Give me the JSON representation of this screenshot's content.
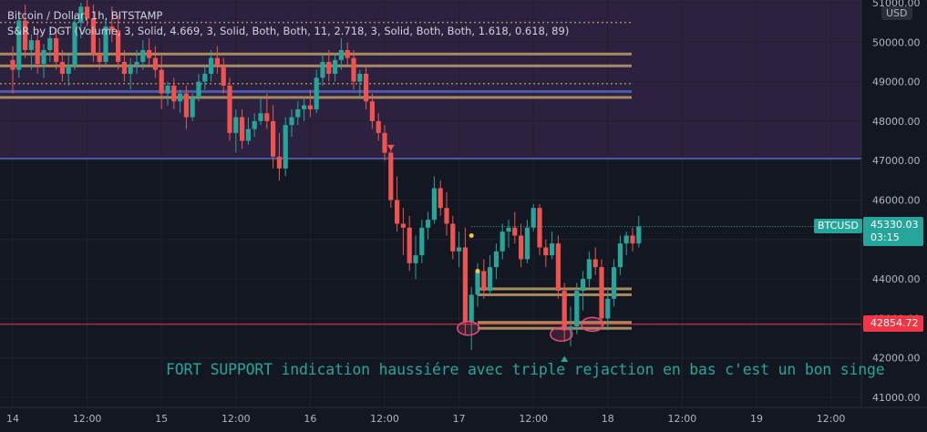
{
  "header": {
    "symbol_line": "Bitcoin / Dollar, 1h, BITSTAMP",
    "indicator_line": "S&R by DGT (Volume, 3, Solid, 4.669, 3, Solid, Both, Both, 11, 2.718, 3, Solid, Both, Both, 1.618, 0.618, 89)"
  },
  "annotation": "FORT SUPPORT indication haussiére avec triple rejaction en bas c'est un bon singe",
  "tags": {
    "symbol": "BTCUSD",
    "last_price": "45330.03",
    "countdown": "03:15",
    "support_price": "42854.72",
    "currency": "USD"
  },
  "colors": {
    "background": "#131722",
    "zone": "#2d2140",
    "up": "#26a69a",
    "down": "#ef5350",
    "level": "#a88a60",
    "support_line": "#f23645"
  },
  "chart_data": {
    "type": "candlestick",
    "title": "Bitcoin / Dollar, 1h, BITSTAMP",
    "ylabel": "USD",
    "ylim": [
      40800,
      51100
    ],
    "y_ticks": [
      41000,
      42000,
      43000,
      44000,
      45000,
      46000,
      47000,
      48000,
      49000,
      50000,
      51000
    ],
    "y_tick_labels": [
      "41000.00",
      "42000.00",
      "43000.00",
      "44000.00",
      "45000.00",
      "46000.00",
      "47000.00",
      "48000.00",
      "49000.00",
      "50000.00",
      "51000.00"
    ],
    "x_ticks": [
      {
        "label": "14",
        "t": 0
      },
      {
        "label": "12:00",
        "t": 12
      },
      {
        "label": "15",
        "t": 24
      },
      {
        "label": "12:00",
        "t": 36
      },
      {
        "label": "16",
        "t": 48
      },
      {
        "label": "12:00",
        "t": 60
      },
      {
        "label": "17",
        "t": 72
      },
      {
        "label": "12:00",
        "t": 84
      },
      {
        "label": "18",
        "t": 96
      },
      {
        "label": "12:00",
        "t": 108
      },
      {
        "label": "19",
        "t": 120
      },
      {
        "label": "12:00",
        "t": 132
      }
    ],
    "resistance_zone": [
      47050,
      51100
    ],
    "levels": [
      49700,
      49400,
      48600,
      48750
    ],
    "dotted_levels": [
      50500,
      48950
    ],
    "support_levels": [
      43750,
      43600,
      42900,
      42750
    ],
    "support_line": 42854.72,
    "last_price": 45330.03,
    "last_price_line_from_t": 74,
    "candles": [
      {
        "o": 49550,
        "h": 49900,
        "l": 48700,
        "c": 49300
      },
      {
        "o": 49300,
        "h": 50800,
        "l": 49100,
        "c": 50550
      },
      {
        "o": 50550,
        "h": 50950,
        "l": 49600,
        "c": 49800
      },
      {
        "o": 49800,
        "h": 50200,
        "l": 49300,
        "c": 50050
      },
      {
        "o": 50050,
        "h": 50300,
        "l": 49200,
        "c": 49450
      },
      {
        "o": 49450,
        "h": 49950,
        "l": 49100,
        "c": 49800
      },
      {
        "o": 49800,
        "h": 50400,
        "l": 49500,
        "c": 50100
      },
      {
        "o": 50100,
        "h": 50350,
        "l": 49300,
        "c": 49500
      },
      {
        "o": 49500,
        "h": 49800,
        "l": 49000,
        "c": 49200
      },
      {
        "o": 49200,
        "h": 49700,
        "l": 48900,
        "c": 49400
      },
      {
        "o": 49400,
        "h": 50700,
        "l": 49300,
        "c": 50500
      },
      {
        "o": 50500,
        "h": 51000,
        "l": 50100,
        "c": 50900
      },
      {
        "o": 50900,
        "h": 51100,
        "l": 50400,
        "c": 50600
      },
      {
        "o": 50600,
        "h": 50950,
        "l": 49500,
        "c": 49700
      },
      {
        "o": 49700,
        "h": 50100,
        "l": 49300,
        "c": 49500
      },
      {
        "o": 49500,
        "h": 50600,
        "l": 49400,
        "c": 50400
      },
      {
        "o": 50400,
        "h": 50900,
        "l": 50000,
        "c": 50300
      },
      {
        "o": 50300,
        "h": 50700,
        "l": 49300,
        "c": 49500
      },
      {
        "o": 49500,
        "h": 49800,
        "l": 49000,
        "c": 49200
      },
      {
        "o": 49200,
        "h": 49600,
        "l": 48800,
        "c": 49400
      },
      {
        "o": 49400,
        "h": 49800,
        "l": 49200,
        "c": 49500
      },
      {
        "o": 49500,
        "h": 50050,
        "l": 49300,
        "c": 49800
      },
      {
        "o": 49800,
        "h": 50100,
        "l": 49400,
        "c": 49600
      },
      {
        "o": 49600,
        "h": 49900,
        "l": 49100,
        "c": 49300
      },
      {
        "o": 49300,
        "h": 49650,
        "l": 48300,
        "c": 48700
      },
      {
        "o": 48700,
        "h": 49000,
        "l": 48400,
        "c": 48900
      },
      {
        "o": 48900,
        "h": 49100,
        "l": 48300,
        "c": 48500
      },
      {
        "o": 48500,
        "h": 48800,
        "l": 48200,
        "c": 48700
      },
      {
        "o": 48700,
        "h": 48900,
        "l": 47800,
        "c": 48100
      },
      {
        "o": 48100,
        "h": 48700,
        "l": 48000,
        "c": 48600
      },
      {
        "o": 48600,
        "h": 49200,
        "l": 48500,
        "c": 49000
      },
      {
        "o": 49000,
        "h": 49400,
        "l": 48800,
        "c": 49200
      },
      {
        "o": 49200,
        "h": 49800,
        "l": 49000,
        "c": 49600
      },
      {
        "o": 49600,
        "h": 49900,
        "l": 49200,
        "c": 49400
      },
      {
        "o": 49400,
        "h": 49600,
        "l": 48700,
        "c": 48900
      },
      {
        "o": 48900,
        "h": 49100,
        "l": 47500,
        "c": 47700
      },
      {
        "o": 47700,
        "h": 48300,
        "l": 47200,
        "c": 48100
      },
      {
        "o": 48100,
        "h": 48300,
        "l": 47300,
        "c": 47500
      },
      {
        "o": 47500,
        "h": 48100,
        "l": 47400,
        "c": 47800
      },
      {
        "o": 47800,
        "h": 48200,
        "l": 47600,
        "c": 48000
      },
      {
        "o": 48000,
        "h": 48600,
        "l": 47900,
        "c": 48200
      },
      {
        "o": 48200,
        "h": 48700,
        "l": 47800,
        "c": 48000
      },
      {
        "o": 48000,
        "h": 48400,
        "l": 46800,
        "c": 47100
      },
      {
        "o": 47100,
        "h": 47700,
        "l": 46500,
        "c": 46800
      },
      {
        "o": 46800,
        "h": 48100,
        "l": 46600,
        "c": 47900
      },
      {
        "o": 47900,
        "h": 48300,
        "l": 47600,
        "c": 48100
      },
      {
        "o": 48100,
        "h": 48500,
        "l": 47900,
        "c": 48300
      },
      {
        "o": 48300,
        "h": 48600,
        "l": 48000,
        "c": 48400
      },
      {
        "o": 48400,
        "h": 48800,
        "l": 48100,
        "c": 48300
      },
      {
        "o": 48300,
        "h": 49300,
        "l": 48200,
        "c": 49100
      },
      {
        "o": 49100,
        "h": 49700,
        "l": 48900,
        "c": 49500
      },
      {
        "o": 49500,
        "h": 49800,
        "l": 49000,
        "c": 49200
      },
      {
        "o": 49200,
        "h": 49700,
        "l": 49000,
        "c": 49550
      },
      {
        "o": 49550,
        "h": 50100,
        "l": 49300,
        "c": 49800
      },
      {
        "o": 49800,
        "h": 50000,
        "l": 49400,
        "c": 49600
      },
      {
        "o": 49600,
        "h": 49800,
        "l": 48800,
        "c": 49000
      },
      {
        "o": 49000,
        "h": 49300,
        "l": 48600,
        "c": 49200
      },
      {
        "o": 49200,
        "h": 49400,
        "l": 48300,
        "c": 48500
      },
      {
        "o": 48500,
        "h": 48700,
        "l": 47800,
        "c": 48000
      },
      {
        "o": 48000,
        "h": 48200,
        "l": 47500,
        "c": 47700
      },
      {
        "o": 47700,
        "h": 47900,
        "l": 47000,
        "c": 47200
      },
      {
        "o": 47200,
        "h": 47300,
        "l": 45800,
        "c": 46000
      },
      {
        "o": 46000,
        "h": 46600,
        "l": 45200,
        "c": 45400
      },
      {
        "o": 45400,
        "h": 45800,
        "l": 44600,
        "c": 45300
      },
      {
        "o": 45300,
        "h": 45600,
        "l": 44200,
        "c": 44400
      },
      {
        "o": 44400,
        "h": 45100,
        "l": 44000,
        "c": 44600
      },
      {
        "o": 44600,
        "h": 45500,
        "l": 44400,
        "c": 45300
      },
      {
        "o": 45300,
        "h": 45700,
        "l": 45000,
        "c": 45500
      },
      {
        "o": 45500,
        "h": 46600,
        "l": 45400,
        "c": 46300
      },
      {
        "o": 46300,
        "h": 46500,
        "l": 45600,
        "c": 45800
      },
      {
        "o": 45800,
        "h": 46200,
        "l": 45100,
        "c": 45400
      },
      {
        "o": 45400,
        "h": 45600,
        "l": 44500,
        "c": 44700
      },
      {
        "o": 44700,
        "h": 45200,
        "l": 44300,
        "c": 44800
      },
      {
        "o": 44800,
        "h": 45300,
        "l": 42600,
        "c": 42900
      },
      {
        "o": 42900,
        "h": 43800,
        "l": 42200,
        "c": 43600
      },
      {
        "o": 43600,
        "h": 44400,
        "l": 43300,
        "c": 44200
      },
      {
        "o": 44200,
        "h": 44500,
        "l": 43500,
        "c": 43700
      },
      {
        "o": 43700,
        "h": 44600,
        "l": 43600,
        "c": 44300
      },
      {
        "o": 44300,
        "h": 44900,
        "l": 44000,
        "c": 44700
      },
      {
        "o": 44700,
        "h": 45400,
        "l": 44500,
        "c": 45200
      },
      {
        "o": 45200,
        "h": 45500,
        "l": 44800,
        "c": 45300
      },
      {
        "o": 45300,
        "h": 45700,
        "l": 44900,
        "c": 45100
      },
      {
        "o": 45100,
        "h": 45400,
        "l": 44300,
        "c": 44500
      },
      {
        "o": 44500,
        "h": 45500,
        "l": 44400,
        "c": 45300
      },
      {
        "o": 45300,
        "h": 45900,
        "l": 45200,
        "c": 45800
      },
      {
        "o": 45800,
        "h": 45900,
        "l": 44600,
        "c": 44800
      },
      {
        "o": 44800,
        "h": 45000,
        "l": 44300,
        "c": 44600
      },
      {
        "o": 44600,
        "h": 45200,
        "l": 44500,
        "c": 44900
      },
      {
        "o": 44900,
        "h": 45100,
        "l": 43500,
        "c": 43700
      },
      {
        "o": 43700,
        "h": 43900,
        "l": 42400,
        "c": 42700
      },
      {
        "o": 42700,
        "h": 43300,
        "l": 42300,
        "c": 42800
      },
      {
        "o": 42800,
        "h": 43900,
        "l": 42600,
        "c": 43700
      },
      {
        "o": 43700,
        "h": 44200,
        "l": 43200,
        "c": 44000
      },
      {
        "o": 44000,
        "h": 44700,
        "l": 43800,
        "c": 44500
      },
      {
        "o": 44500,
        "h": 44800,
        "l": 44100,
        "c": 44300
      },
      {
        "o": 44300,
        "h": 44500,
        "l": 42800,
        "c": 43000
      },
      {
        "o": 43000,
        "h": 43700,
        "l": 42700,
        "c": 43500
      },
      {
        "o": 43500,
        "h": 44500,
        "l": 43300,
        "c": 44300
      },
      {
        "o": 44300,
        "h": 45100,
        "l": 44100,
        "c": 44900
      },
      {
        "o": 44900,
        "h": 45200,
        "l": 44600,
        "c": 45100
      },
      {
        "o": 45100,
        "h": 45300,
        "l": 44700,
        "c": 44900
      },
      {
        "o": 44900,
        "h": 45600,
        "l": 44800,
        "c": 45330
      }
    ]
  }
}
